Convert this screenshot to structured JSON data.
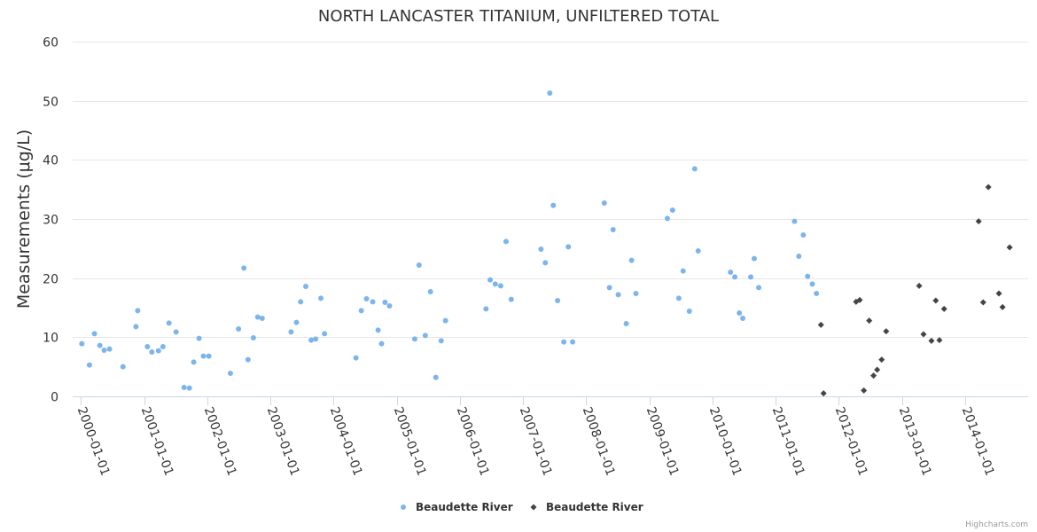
{
  "chart_data": {
    "type": "scatter",
    "title": "NORTH LANCASTER TITANIUM, UNFILTERED TOTAL",
    "ylabel": "Measurements (μg/L)",
    "xlabel": "",
    "ylim": [
      0,
      60
    ],
    "yticks": [
      0,
      10,
      20,
      30,
      40,
      50,
      60
    ],
    "xlim": [
      "1999-11-15",
      "2014-12-31"
    ],
    "xticks": [
      "2000-01-01",
      "2001-01-01",
      "2002-01-01",
      "2003-01-01",
      "2004-01-01",
      "2005-01-01",
      "2006-01-01",
      "2007-01-01",
      "2008-01-01",
      "2009-01-01",
      "2010-01-01",
      "2011-01-01",
      "2012-01-01",
      "2013-01-01",
      "2014-01-01"
    ],
    "grid": true,
    "legend_position": "bottom-center",
    "series": [
      {
        "name": "Beaudette River",
        "marker": "circle",
        "color": "#7cb5ec",
        "points": [
          [
            "2000-01-07",
            8.9
          ],
          [
            "2000-02-20",
            5.3
          ],
          [
            "2000-03-20",
            10.6
          ],
          [
            "2000-04-20",
            8.6
          ],
          [
            "2000-05-15",
            7.8
          ],
          [
            "2000-06-15",
            8.0
          ],
          [
            "2000-09-01",
            5.0
          ],
          [
            "2000-11-15",
            11.8
          ],
          [
            "2000-11-25",
            14.5
          ],
          [
            "2001-01-20",
            8.4
          ],
          [
            "2001-02-15",
            7.5
          ],
          [
            "2001-03-25",
            7.7
          ],
          [
            "2001-04-20",
            8.4
          ],
          [
            "2001-05-25",
            12.4
          ],
          [
            "2001-07-05",
            10.9
          ],
          [
            "2001-08-20",
            1.5
          ],
          [
            "2001-09-20",
            1.4
          ],
          [
            "2001-10-15",
            5.8
          ],
          [
            "2001-11-15",
            9.8
          ],
          [
            "2001-12-10",
            6.8
          ],
          [
            "2002-01-10",
            6.8
          ],
          [
            "2002-05-15",
            3.9
          ],
          [
            "2002-07-01",
            11.4
          ],
          [
            "2002-08-01",
            21.7
          ],
          [
            "2002-08-25",
            6.2
          ],
          [
            "2002-09-25",
            9.9
          ],
          [
            "2002-10-20",
            13.4
          ],
          [
            "2002-11-15",
            13.2
          ],
          [
            "2003-05-01",
            10.9
          ],
          [
            "2003-06-01",
            12.5
          ],
          [
            "2003-06-25",
            16.0
          ],
          [
            "2003-07-25",
            18.6
          ],
          [
            "2003-08-25",
            9.5
          ],
          [
            "2003-09-20",
            9.7
          ],
          [
            "2003-10-20",
            16.6
          ],
          [
            "2003-11-10",
            10.6
          ],
          [
            "2004-05-10",
            6.5
          ],
          [
            "2004-06-10",
            14.5
          ],
          [
            "2004-07-10",
            16.5
          ],
          [
            "2004-08-15",
            16.0
          ],
          [
            "2004-09-15",
            11.2
          ],
          [
            "2004-10-05",
            8.9
          ],
          [
            "2004-10-25",
            15.9
          ],
          [
            "2004-11-20",
            15.3
          ],
          [
            "2005-04-15",
            9.7
          ],
          [
            "2005-05-10",
            22.2
          ],
          [
            "2005-06-15",
            10.3
          ],
          [
            "2005-07-15",
            17.7
          ],
          [
            "2005-08-15",
            3.2
          ],
          [
            "2005-09-15",
            9.4
          ],
          [
            "2005-10-10",
            12.8
          ],
          [
            "2006-06-01",
            14.8
          ],
          [
            "2006-06-25",
            19.7
          ],
          [
            "2006-07-25",
            19.0
          ],
          [
            "2006-08-25",
            18.7
          ],
          [
            "2006-09-25",
            26.2
          ],
          [
            "2006-10-25",
            16.4
          ],
          [
            "2007-04-15",
            24.9
          ],
          [
            "2007-05-10",
            22.6
          ],
          [
            "2007-06-05",
            51.3
          ],
          [
            "2007-06-25",
            32.3
          ],
          [
            "2007-07-20",
            16.2
          ],
          [
            "2007-08-25",
            9.2
          ],
          [
            "2007-09-20",
            25.3
          ],
          [
            "2007-10-15",
            9.2
          ],
          [
            "2008-04-15",
            32.7
          ],
          [
            "2008-05-15",
            18.4
          ],
          [
            "2008-06-05",
            28.2
          ],
          [
            "2008-07-05",
            17.2
          ],
          [
            "2008-08-20",
            12.3
          ],
          [
            "2008-09-20",
            23.0
          ],
          [
            "2008-10-15",
            17.4
          ],
          [
            "2009-04-15",
            30.1
          ],
          [
            "2009-05-15",
            31.5
          ],
          [
            "2009-06-20",
            16.6
          ],
          [
            "2009-07-15",
            21.2
          ],
          [
            "2009-08-20",
            14.4
          ],
          [
            "2009-09-20",
            38.5
          ],
          [
            "2009-10-10",
            24.6
          ],
          [
            "2010-04-15",
            21.0
          ],
          [
            "2010-05-10",
            20.2
          ],
          [
            "2010-06-05",
            14.1
          ],
          [
            "2010-06-25",
            13.2
          ],
          [
            "2010-08-10",
            20.2
          ],
          [
            "2010-08-30",
            23.3
          ],
          [
            "2010-09-25",
            18.4
          ],
          [
            "2011-04-20",
            29.6
          ],
          [
            "2011-05-15",
            23.7
          ],
          [
            "2011-06-10",
            27.3
          ],
          [
            "2011-07-05",
            20.3
          ],
          [
            "2011-08-01",
            19.0
          ],
          [
            "2011-08-25",
            17.4
          ]
        ]
      },
      {
        "name": "Beaudette River",
        "marker": "diamond",
        "color": "#434348",
        "points": [
          [
            "2011-09-20",
            12.1
          ],
          [
            "2011-10-05",
            0.5
          ],
          [
            "2012-04-10",
            16.0
          ],
          [
            "2012-05-01",
            16.3
          ],
          [
            "2012-05-25",
            1.0
          ],
          [
            "2012-06-25",
            12.8
          ],
          [
            "2012-07-20",
            3.5
          ],
          [
            "2012-08-10",
            4.5
          ],
          [
            "2012-09-05",
            6.2
          ],
          [
            "2012-10-01",
            11.0
          ],
          [
            "2013-04-10",
            18.7
          ],
          [
            "2013-05-05",
            10.5
          ],
          [
            "2013-06-20",
            9.4
          ],
          [
            "2013-07-15",
            16.2
          ],
          [
            "2013-08-05",
            9.5
          ],
          [
            "2013-09-01",
            14.8
          ],
          [
            "2014-03-20",
            29.6
          ],
          [
            "2014-04-15",
            15.9
          ],
          [
            "2014-05-15",
            35.4
          ],
          [
            "2014-07-15",
            17.4
          ],
          [
            "2014-08-05",
            15.1
          ],
          [
            "2014-09-15",
            25.2
          ]
        ]
      }
    ]
  },
  "credits": "Highcharts.com"
}
